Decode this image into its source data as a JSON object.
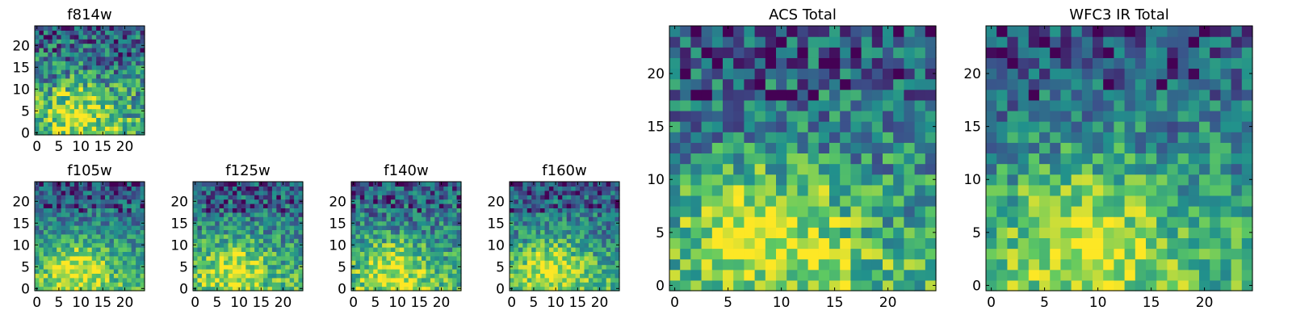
{
  "colormap": [
    "#440154",
    "#3b528b",
    "#21918c",
    "#5ec962",
    "#fde725"
  ],
  "chart_data": [
    {
      "type": "heatmap",
      "id": "f814w",
      "title": "f814w",
      "xlim": [
        0,
        24
      ],
      "ylim": [
        0,
        24
      ],
      "xticks": [
        0,
        5,
        10,
        15,
        20
      ],
      "yticks": [
        0,
        5,
        10,
        15,
        20
      ],
      "grid": false,
      "legend": "none",
      "seed": 11,
      "noise": 0.32
    },
    {
      "type": "heatmap",
      "id": "f105w",
      "title": "f105w",
      "xlim": [
        0,
        24
      ],
      "ylim": [
        0,
        24
      ],
      "xticks": [
        0,
        5,
        10,
        15,
        20
      ],
      "yticks": [
        0,
        5,
        10,
        15,
        20
      ],
      "grid": false,
      "legend": "none",
      "seed": 23,
      "noise": 0.22
    },
    {
      "type": "heatmap",
      "id": "f125w",
      "title": "f125w",
      "xlim": [
        0,
        24
      ],
      "ylim": [
        0,
        24
      ],
      "xticks": [
        0,
        5,
        10,
        15,
        20
      ],
      "yticks": [
        0,
        5,
        10,
        15,
        20
      ],
      "grid": false,
      "legend": "none",
      "seed": 37,
      "noise": 0.26
    },
    {
      "type": "heatmap",
      "id": "f140w",
      "title": "f140w",
      "xlim": [
        0,
        24
      ],
      "ylim": [
        0,
        24
      ],
      "xticks": [
        0,
        5,
        10,
        15,
        20
      ],
      "yticks": [
        0,
        5,
        10,
        15,
        20
      ],
      "grid": false,
      "legend": "none",
      "seed": 41,
      "noise": 0.26
    },
    {
      "type": "heatmap",
      "id": "f160w",
      "title": "f160w",
      "xlim": [
        0,
        24
      ],
      "ylim": [
        0,
        24
      ],
      "xticks": [
        0,
        5,
        10,
        15,
        20
      ],
      "yticks": [
        0,
        5,
        10,
        15,
        20
      ],
      "grid": false,
      "legend": "none",
      "seed": 53,
      "noise": 0.24
    },
    {
      "type": "heatmap",
      "id": "acs-total",
      "title": "ACS Total",
      "xlim": [
        0,
        24
      ],
      "ylim": [
        0,
        24
      ],
      "xticks": [
        0,
        5,
        10,
        15,
        20
      ],
      "yticks": [
        0,
        5,
        10,
        15,
        20
      ],
      "grid": false,
      "legend": "none",
      "seed": 67,
      "noise": 0.28
    },
    {
      "type": "heatmap",
      "id": "wfc3-ir-total",
      "title": "WFC3 IR Total",
      "xlim": [
        0,
        24
      ],
      "ylim": [
        0,
        24
      ],
      "xticks": [
        0,
        5,
        10,
        15,
        20
      ],
      "yticks": [
        0,
        5,
        10,
        15,
        20
      ],
      "grid": false,
      "legend": "none",
      "seed": 79,
      "noise": 0.24
    }
  ]
}
